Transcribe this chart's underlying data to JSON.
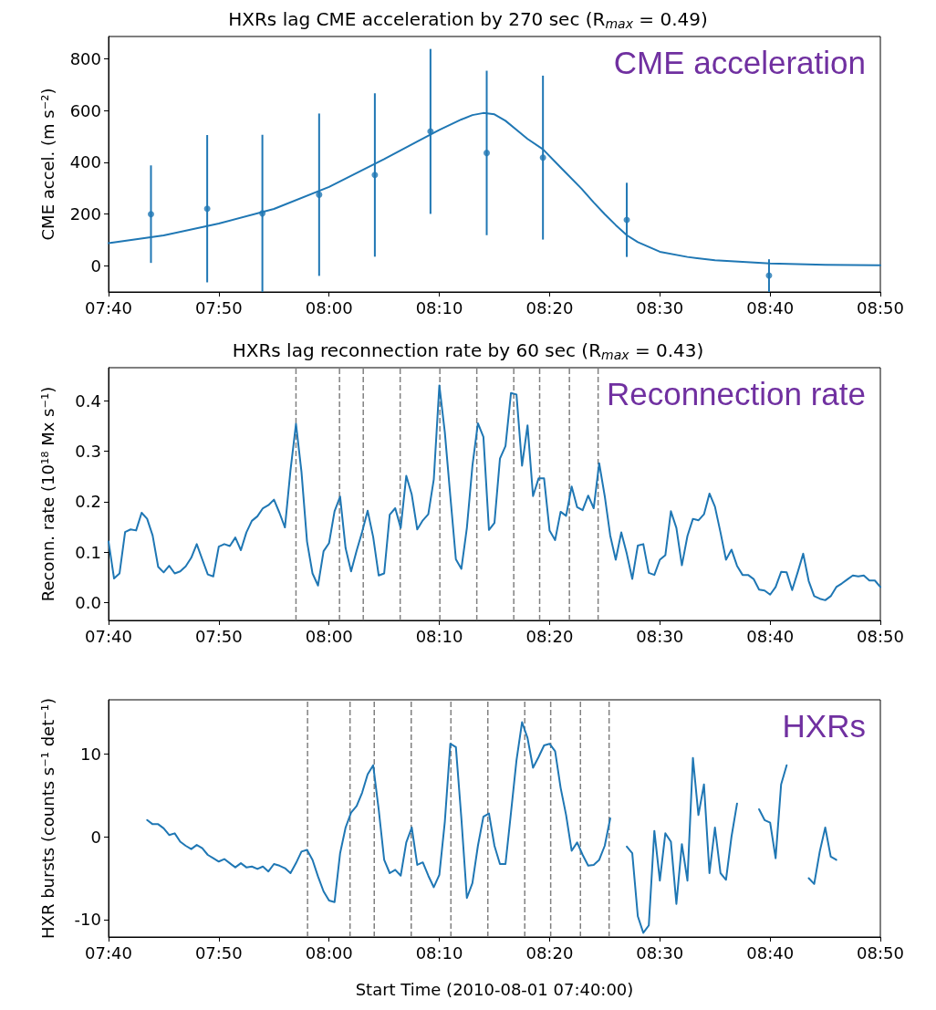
{
  "chart_data": [
    {
      "type": "scatter",
      "title": "HXRs lag CME acceleration by 270 sec (R$_{max}$ = 0.49)",
      "ylabel": "CME accel. (m s⁻²)",
      "annotations": [
        "CME acceleration"
      ],
      "xlim": [
        7.6667,
        8.8333
      ],
      "xticks": [
        {
          "value": 7.6667,
          "label": "07:40"
        },
        {
          "value": 7.8333,
          "label": "07:50"
        },
        {
          "value": 8,
          "label": "08:00"
        },
        {
          "value": 8.1667,
          "label": "08:10"
        },
        {
          "value": 8.3333,
          "label": "08:20"
        },
        {
          "value": 8.5,
          "label": "08:30"
        },
        {
          "value": 8.6667,
          "label": "08:40"
        },
        {
          "value": 8.8333,
          "label": "08:50"
        }
      ],
      "ylim": [
        -100,
        885
      ],
      "yticks": [
        0,
        200,
        400,
        600,
        800
      ],
      "grid": false,
      "series": [
        {
          "marker": "circle",
          "color": "#1f77b4",
          "x": [
            7.7308,
            7.8158,
            7.8992,
            7.985,
            8.0692,
            8.1533,
            8.2383,
            8.3233,
            8.45,
            8.665
          ],
          "values": [
            200,
            221,
            203,
            275,
            351,
            519,
            436,
            418,
            178,
            -37
          ],
          "errors": [
            188,
            284,
            303,
            313,
            315,
            318,
            317,
            316,
            143,
            63
          ]
        },
        {
          "type": "line",
          "color": "#1f77b4",
          "x": [
            7.6667,
            7.75,
            7.8333,
            7.9167,
            8.0,
            8.0833,
            8.1333,
            8.1667,
            8.2,
            8.2167,
            8.2333,
            8.25,
            8.2667,
            8.2833,
            8.3,
            8.3233,
            8.35,
            8.3817,
            8.4,
            8.4167,
            8.4333,
            8.45,
            8.4667,
            8.5,
            8.5417,
            8.5833,
            8.6667,
            8.75,
            8.8333
          ],
          "values": [
            88,
            118,
            164,
            220,
            305,
            412,
            480,
            525,
            565,
            582,
            590,
            585,
            560,
            525,
            490,
            450,
            380,
            298,
            245,
            200,
            158,
            119,
            92,
            55,
            35,
            22,
            10,
            5,
            3
          ]
        }
      ]
    },
    {
      "type": "line",
      "title": "HXRs lag reconnection rate by 60 sec (R$_{max}$ = 0.43)",
      "ylabel": "Reconn. rate (10¹⁸ Mx s⁻¹)",
      "annotations": [
        "Reconnection rate"
      ],
      "xlim": [
        7.6667,
        8.8333
      ],
      "xticks": [
        {
          "value": 7.6667,
          "label": "07:40"
        },
        {
          "value": 7.8333,
          "label": "07:50"
        },
        {
          "value": 8,
          "label": "08:00"
        },
        {
          "value": 8.1667,
          "label": "08:10"
        },
        {
          "value": 8.3333,
          "label": "08:20"
        },
        {
          "value": 8.5,
          "label": "08:30"
        },
        {
          "value": 8.6667,
          "label": "08:40"
        },
        {
          "value": 8.8333,
          "label": "08:50"
        }
      ],
      "ylim": [
        -0.035,
        0.465
      ],
      "yticks": [
        {
          "value": 0,
          "label": "0.0"
        },
        {
          "value": 0.1,
          "label": "0.1"
        },
        {
          "value": 0.2,
          "label": "0.2"
        },
        {
          "value": 0.3,
          "label": "0.3"
        },
        {
          "value": 0.4,
          "label": "0.4"
        }
      ],
      "grid": false,
      "ref_lines": [
        {
          "axis": "x",
          "value": 7.95,
          "color": "#808080",
          "line_style": "dashed"
        },
        {
          "axis": "x",
          "value": 8.0158,
          "color": "#808080",
          "line_style": "dashed"
        },
        {
          "axis": "x",
          "value": 8.0517,
          "color": "#808080",
          "line_style": "dashed"
        },
        {
          "axis": "x",
          "value": 8.1075,
          "color": "#808080",
          "line_style": "dashed"
        },
        {
          "axis": "x",
          "value": 8.1675,
          "color": "#808080",
          "line_style": "dashed"
        },
        {
          "axis": "x",
          "value": 8.2233,
          "color": "#808080",
          "line_style": "dashed"
        },
        {
          "axis": "x",
          "value": 8.2792,
          "color": "#808080",
          "line_style": "dashed"
        },
        {
          "axis": "x",
          "value": 8.3183,
          "color": "#808080",
          "line_style": "dashed"
        },
        {
          "axis": "x",
          "value": 8.3633,
          "color": "#808080",
          "line_style": "dashed"
        },
        {
          "axis": "x",
          "value": 8.4067,
          "color": "#808080",
          "line_style": "dashed"
        }
      ],
      "x": [
        7.6667,
        7.675,
        7.6833,
        7.6917,
        7.7,
        7.7083,
        7.7167,
        7.725,
        7.7333,
        7.7417,
        7.75,
        7.7583,
        7.7667,
        7.775,
        7.7833,
        7.7917,
        7.8,
        7.8083,
        7.8167,
        7.825,
        7.8333,
        7.8417,
        7.85,
        7.8583,
        7.8667,
        7.875,
        7.8833,
        7.8917,
        7.9,
        7.9083,
        7.9167,
        7.925,
        7.9333,
        7.9417,
        7.95,
        7.9583,
        7.9667,
        7.975,
        7.9833,
        7.9917,
        8,
        8.0083,
        8.0167,
        8.025,
        8.0333,
        8.0417,
        8.05,
        8.0583,
        8.0667,
        8.075,
        8.0833,
        8.0917,
        8.1,
        8.1083,
        8.1167,
        8.125,
        8.1333,
        8.1417,
        8.15,
        8.1583,
        8.1667,
        8.175,
        8.1833,
        8.1917,
        8.2,
        8.2083,
        8.2167,
        8.225,
        8.2333,
        8.2417,
        8.25,
        8.2583,
        8.2667,
        8.275,
        8.2833,
        8.2917,
        8.3,
        8.3083,
        8.3167,
        8.325,
        8.3333,
        8.3417,
        8.35,
        8.3583,
        8.3667,
        8.375,
        8.3833,
        8.3917,
        8.4,
        8.4083,
        8.4167,
        8.425,
        8.4333,
        8.4417,
        8.45,
        8.4583,
        8.4667,
        8.475,
        8.4833,
        8.4917,
        8.5,
        8.5083,
        8.5167,
        8.525,
        8.5333,
        8.5417,
        8.55,
        8.5583,
        8.5667,
        8.575,
        8.5833,
        8.5917,
        8.6,
        8.6083,
        8.6167,
        8.625,
        8.6333,
        8.6417,
        8.65,
        8.6583,
        8.6667,
        8.675,
        8.6833,
        8.6917,
        8.7,
        8.7083,
        8.7167,
        8.725,
        8.7333,
        8.7417,
        8.75,
        8.7583,
        8.7667,
        8.775,
        8.7833,
        8.7917,
        8.8,
        8.8083,
        8.8167,
        8.825,
        8.8333
      ],
      "series": [
        {
          "color": "#1f77b4",
          "values": [
            0.121,
            0.048,
            0.058,
            0.14,
            0.145,
            0.143,
            0.178,
            0.166,
            0.133,
            0.071,
            0.06,
            0.073,
            0.058,
            0.062,
            0.072,
            0.089,
            0.116,
            0.086,
            0.056,
            0.052,
            0.111,
            0.116,
            0.112,
            0.129,
            0.104,
            0.139,
            0.162,
            0.171,
            0.187,
            0.193,
            0.204,
            0.178,
            0.149,
            0.262,
            0.354,
            0.259,
            0.121,
            0.058,
            0.034,
            0.102,
            0.118,
            0.181,
            0.21,
            0.108,
            0.062,
            0.103,
            0.14,
            0.182,
            0.13,
            0.054,
            0.058,
            0.174,
            0.187,
            0.148,
            0.251,
            0.214,
            0.145,
            0.163,
            0.175,
            0.244,
            0.43,
            0.337,
            0.211,
            0.086,
            0.067,
            0.148,
            0.271,
            0.355,
            0.328,
            0.144,
            0.158,
            0.285,
            0.31,
            0.415,
            0.412,
            0.271,
            0.351,
            0.211,
            0.246,
            0.246,
            0.143,
            0.124,
            0.18,
            0.172,
            0.23,
            0.189,
            0.183,
            0.212,
            0.187,
            0.276,
            0.211,
            0.133,
            0.085,
            0.139,
            0.097,
            0.047,
            0.113,
            0.116,
            0.059,
            0.055,
            0.085,
            0.094,
            0.181,
            0.148,
            0.074,
            0.132,
            0.166,
            0.163,
            0.175,
            0.216,
            0.19,
            0.139,
            0.085,
            0.105,
            0.073,
            0.055,
            0.055,
            0.047,
            0.026,
            0.024,
            0.016,
            0.031,
            0.061,
            0.06,
            0.025,
            0.06,
            0.097,
            0.043,
            0.013,
            0.008,
            0.005,
            0.013,
            0.031,
            0.038,
            0.046,
            0.054,
            0.052,
            0.054,
            0.044,
            0.044,
            0.031
          ]
        }
      ]
    },
    {
      "type": "line",
      "ylabel": "HXR bursts (counts s⁻¹ det⁻¹)",
      "xlabel": "Start Time (2010-08-01 07:40:00)",
      "annotations": [
        "HXRs"
      ],
      "xlim": [
        7.6667,
        8.8333
      ],
      "xticks": [
        {
          "value": 7.6667,
          "label": "07:40"
        },
        {
          "value": 7.8333,
          "label": "07:50"
        },
        {
          "value": 8,
          "label": "08:00"
        },
        {
          "value": 8.1667,
          "label": "08:10"
        },
        {
          "value": 8.3333,
          "label": "08:20"
        },
        {
          "value": 8.5,
          "label": "08:30"
        },
        {
          "value": 8.6667,
          "label": "08:40"
        },
        {
          "value": 8.8333,
          "label": "08:50"
        }
      ],
      "ylim": [
        -12.1,
        16.5
      ],
      "yticks": [
        -10,
        0,
        10
      ],
      "grid": false,
      "ref_lines": [
        {
          "axis": "x",
          "value": 7.9675,
          "color": "#808080",
          "line_style": "dashed"
        },
        {
          "axis": "x",
          "value": 8.0317,
          "color": "#808080",
          "line_style": "dashed"
        },
        {
          "axis": "x",
          "value": 8.0683,
          "color": "#808080",
          "line_style": "dashed"
        },
        {
          "axis": "x",
          "value": 8.1242,
          "color": "#808080",
          "line_style": "dashed"
        },
        {
          "axis": "x",
          "value": 8.1842,
          "color": "#808080",
          "line_style": "dashed"
        },
        {
          "axis": "x",
          "value": 8.24,
          "color": "#808080",
          "line_style": "dashed"
        },
        {
          "axis": "x",
          "value": 8.2958,
          "color": "#808080",
          "line_style": "dashed"
        },
        {
          "axis": "x",
          "value": 8.335,
          "color": "#808080",
          "line_style": "dashed"
        },
        {
          "axis": "x",
          "value": 8.38,
          "color": "#808080",
          "line_style": "dashed"
        },
        {
          "axis": "x",
          "value": 8.4233,
          "color": "#808080",
          "line_style": "dashed"
        }
      ],
      "series": [
        {
          "color": "#1f77b4",
          "x": [
            7.725,
            7.7333,
            7.7417,
            7.75,
            7.7583,
            7.7667,
            7.775,
            7.7833,
            7.7917,
            7.8,
            7.8083,
            7.8167,
            7.825,
            7.8333,
            7.8417,
            7.85,
            7.8583,
            7.8667,
            7.875,
            7.8833,
            7.8917,
            7.9,
            7.9083,
            7.9167,
            7.925,
            7.9333,
            7.9417,
            7.95,
            7.9583,
            7.9667,
            7.975,
            7.9833,
            7.9917,
            8,
            8.0083,
            8.0167,
            8.025,
            8.0333,
            8.0417,
            8.05,
            8.0583,
            8.0667,
            8.075,
            8.0833,
            8.0917,
            8.1,
            8.1083,
            8.1167,
            8.125,
            8.1333,
            8.1417,
            8.15,
            8.1583,
            8.1667,
            8.175,
            8.1833,
            8.1917,
            8.2,
            8.2083,
            8.2167,
            8.225,
            8.2333,
            8.2417,
            8.25,
            8.2583,
            8.2667,
            8.275,
            8.2833,
            8.2917,
            8.3,
            8.3083,
            8.3167,
            8.325,
            8.3333,
            8.3417,
            8.35,
            8.3583,
            8.3667,
            8.375,
            8.3833,
            8.3917,
            8.4,
            8.4083,
            8.4167,
            8.425
          ],
          "values": [
            2.0,
            1.5,
            1.5,
            1.0,
            0.2,
            0.4,
            -0.6,
            -1.1,
            -1.5,
            -1.0,
            -1.4,
            -2.2,
            -2.6,
            -3.0,
            -2.7,
            -3.2,
            -3.7,
            -3.2,
            -3.7,
            -3.6,
            -3.9,
            -3.6,
            -4.2,
            -3.3,
            -3.5,
            -3.8,
            -4.4,
            -3.2,
            -1.8,
            -1.6,
            -2.8,
            -4.8,
            -6.6,
            -7.7,
            -7.9,
            -2.0,
            1.1,
            2.9,
            3.7,
            5.3,
            7.5,
            8.6,
            3.3,
            -2.8,
            -4.4,
            -4.0,
            -4.7,
            -0.7,
            1.1,
            -3.4,
            -3.1,
            -4.7,
            -6.1,
            -4.6,
            1.8,
            11.2,
            10.8,
            2.2,
            -7.4,
            -5.6,
            -1.1,
            2.4,
            2.8,
            -1.1,
            -3.3,
            -3.3,
            2.9,
            9.2,
            13.8,
            11.9,
            8.3,
            9.6,
            11.0,
            11.2,
            10.3,
            5.9,
            2.6,
            -1.7,
            -0.7,
            -2.2,
            -3.5,
            -3.4,
            -2.8,
            -1.1,
            2.2
          ]
        },
        {
          "color": "#1f77b4",
          "x": [
            8.45,
            8.4583,
            8.4667,
            8.475,
            8.4833,
            8.4917,
            8.5,
            8.5083,
            8.5167,
            8.525,
            8.5333,
            8.5417,
            8.55,
            8.5583,
            8.5667,
            8.575,
            8.5833,
            8.5917,
            8.6,
            8.6083,
            8.6167
          ],
          "values": [
            -1.2,
            -2.0,
            -9.6,
            -11.6,
            -10.7,
            0.7,
            -5.3,
            0.4,
            -0.6,
            -8.1,
            -0.9,
            -5.3,
            9.5,
            2.6,
            6.3,
            -4.4,
            1.1,
            -4.4,
            -5.2,
            0.0,
            4.0
          ]
        },
        {
          "color": "#1f77b4",
          "x": [
            8.65,
            8.6583,
            8.6667,
            8.675,
            8.6833,
            8.6917
          ],
          "values": [
            3.3,
            2.0,
            1.7,
            -2.6,
            6.3,
            8.6
          ]
        },
        {
          "color": "#1f77b4",
          "x": [
            8.725,
            8.7333,
            8.7417,
            8.75,
            8.7583,
            8.7667
          ],
          "values": [
            -5.0,
            -5.7,
            -1.8,
            1.1,
            -2.4,
            -2.8
          ]
        }
      ]
    }
  ]
}
